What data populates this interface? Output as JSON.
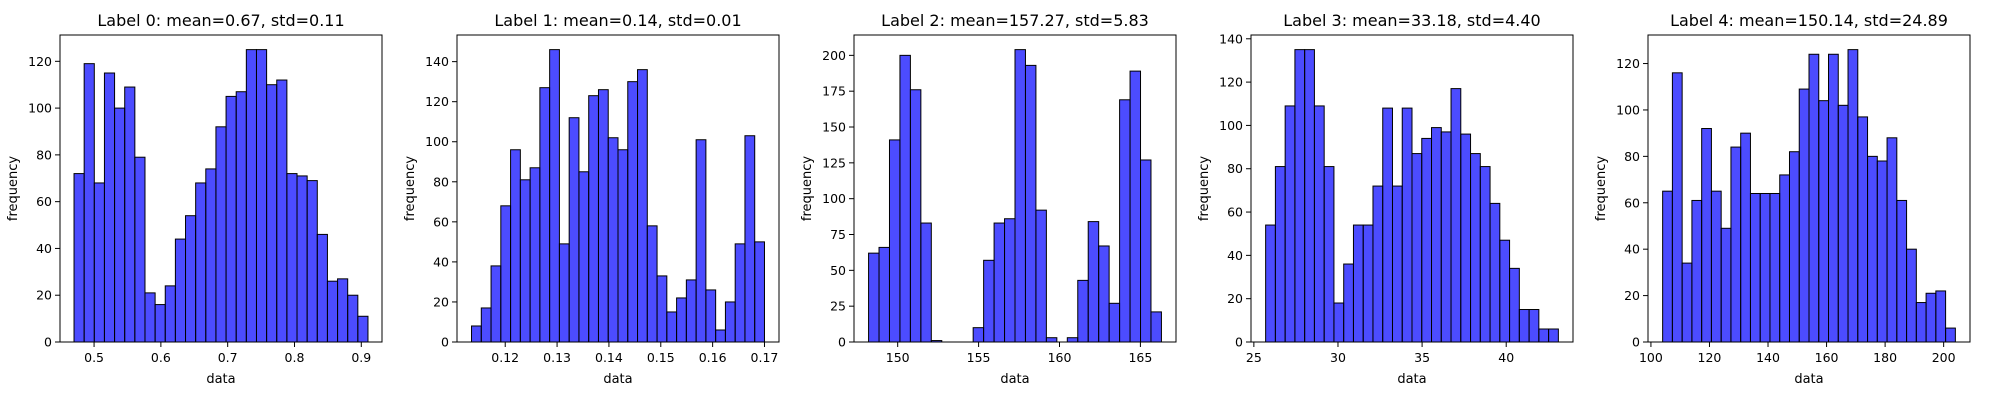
{
  "chart_data": [
    {
      "type": "bar",
      "title": "Label 0: mean=0.67, std=0.11",
      "xlabel": "data",
      "ylabel": "frequency",
      "color": "#0000ff",
      "bin_range": [
        0.47,
        0.91
      ],
      "xlim": [
        0.449,
        0.931
      ],
      "ylim": [
        0,
        131.25
      ],
      "xticks": [
        0.5,
        0.6,
        0.7,
        0.8,
        0.9
      ],
      "xtick_labels": [
        "0.5",
        "0.6",
        "0.7",
        "0.8",
        "0.9"
      ],
      "yticks": [
        0,
        20,
        40,
        60,
        80,
        100,
        120
      ],
      "values": [
        72,
        119,
        68,
        115,
        100,
        109,
        79,
        21,
        16,
        24,
        44,
        54,
        68,
        74,
        92,
        105,
        107,
        125,
        125,
        110,
        112,
        72,
        71,
        69,
        46,
        26,
        27,
        20,
        11
      ]
    },
    {
      "type": "bar",
      "title": "Label 1: mean=0.14, std=0.01",
      "xlabel": "data",
      "ylabel": "frequency",
      "color": "#0000ff",
      "bin_range": [
        0.1135,
        0.17
      ],
      "xlim": [
        0.1107,
        0.1728
      ],
      "ylim": [
        0,
        153.3
      ],
      "xticks": [
        0.12,
        0.13,
        0.14,
        0.15,
        0.16,
        0.17
      ],
      "xtick_labels": [
        "0.12",
        "0.13",
        "0.14",
        "0.15",
        "0.16",
        "0.17"
      ],
      "yticks": [
        0,
        20,
        40,
        60,
        80,
        100,
        120,
        140
      ],
      "values": [
        8,
        17,
        38,
        68,
        96,
        81,
        87,
        127,
        146,
        49,
        112,
        85,
        123,
        126,
        102,
        96,
        130,
        136,
        58,
        33,
        15,
        22,
        31,
        101,
        26,
        6,
        20,
        49,
        103,
        50
      ]
    },
    {
      "type": "bar",
      "title": "Label 2: mean=157.27, std=5.83",
      "xlabel": "data",
      "ylabel": "frequency",
      "color": "#0000ff",
      "bin_range": [
        148.2,
        166.3
      ],
      "xlim": [
        147.3,
        167.2
      ],
      "ylim": [
        0,
        214.2
      ],
      "xticks": [
        150,
        155,
        160,
        165
      ],
      "xtick_labels": [
        "150",
        "155",
        "160",
        "165"
      ],
      "yticks": [
        0,
        25,
        50,
        75,
        100,
        125,
        150,
        175,
        200
      ],
      "values": [
        62,
        66,
        141,
        200,
        176,
        83,
        1,
        0,
        0,
        0,
        10,
        57,
        83,
        86,
        204,
        193,
        92,
        3,
        0,
        3,
        43,
        84,
        67,
        27,
        169,
        189,
        127,
        21
      ]
    },
    {
      "type": "bar",
      "title": "Label 3: mean=33.18, std=4.40",
      "xlabel": "data",
      "ylabel": "frequency",
      "color": "#0000ff",
      "bin_range": [
        25.7,
        43.1
      ],
      "xlim": [
        24.83,
        43.97
      ],
      "ylim": [
        0,
        141.75
      ],
      "xticks": [
        25,
        30,
        35,
        40
      ],
      "xtick_labels": [
        "25",
        "30",
        "35",
        "40"
      ],
      "yticks": [
        0,
        20,
        40,
        60,
        80,
        100,
        120,
        140
      ],
      "values": [
        54,
        81,
        109,
        135,
        135,
        109,
        81,
        18,
        36,
        54,
        54,
        72,
        108,
        72,
        108,
        87,
        94,
        99,
        97,
        117,
        96,
        87,
        81,
        64,
        47,
        34,
        15,
        15,
        6,
        6
      ]
    },
    {
      "type": "bar",
      "title": "Label 4: mean=150.14, std=24.89",
      "xlabel": "data",
      "ylabel": "frequency",
      "color": "#0000ff",
      "bin_range": [
        104,
        204
      ],
      "xlim": [
        99,
        209
      ],
      "ylim": [
        0,
        132.3
      ],
      "xticks": [
        100,
        120,
        140,
        160,
        180,
        200
      ],
      "xtick_labels": [
        "100",
        "120",
        "140",
        "160",
        "180",
        "200"
      ],
      "yticks": [
        0,
        20,
        40,
        60,
        80,
        100,
        120
      ],
      "values": [
        65,
        116,
        34,
        61,
        92,
        65,
        49,
        84,
        90,
        64,
        64,
        64,
        72,
        82,
        109,
        124,
        104,
        124,
        102,
        126,
        97,
        80,
        78,
        88,
        61,
        40,
        17,
        21,
        22,
        6
      ]
    }
  ]
}
